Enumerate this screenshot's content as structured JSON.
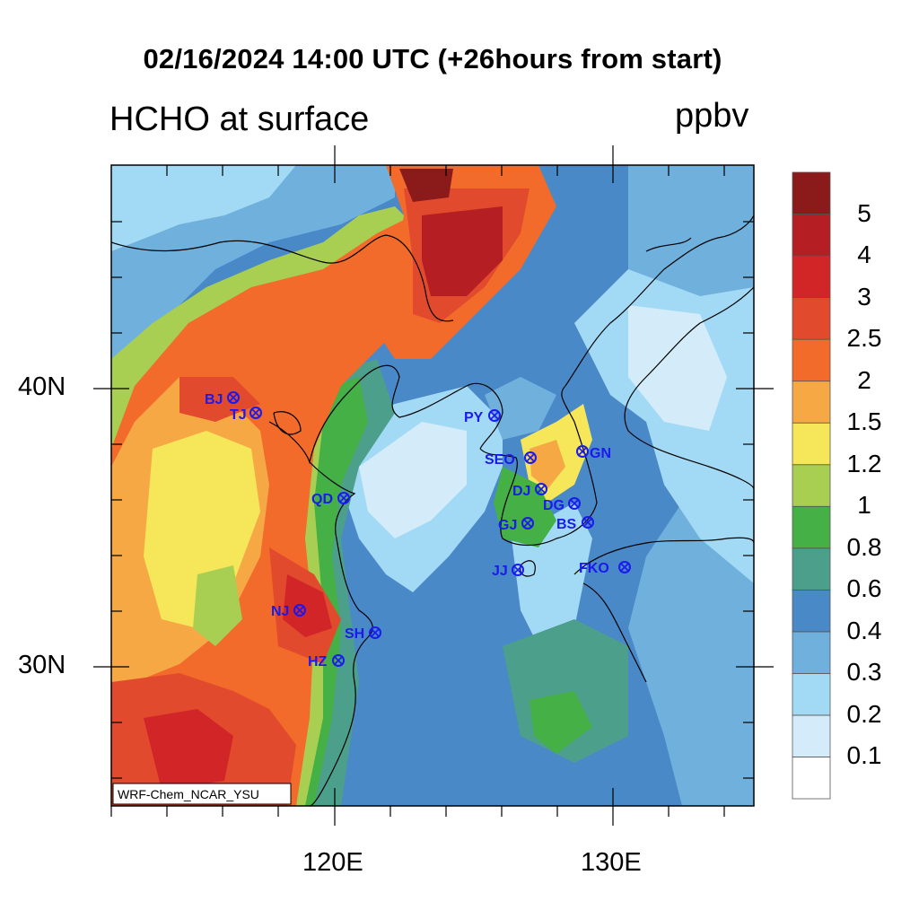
{
  "title": "02/16/2024 14:00 UTC (+26hours from start)",
  "subtitle": "HCHO at surface",
  "units": "ppbv",
  "model_tag": "WRF-Chem_NCAR_YSU",
  "axes": {
    "lat_labels": [
      "40N",
      "30N"
    ],
    "lon_labels": [
      "120E",
      "130E"
    ]
  },
  "colorbar": {
    "levels": [
      "0.1",
      "0.2",
      "0.3",
      "0.4",
      "0.6",
      "0.8",
      "1",
      "1.2",
      "1.5",
      "2",
      "2.5",
      "3",
      "4",
      "5"
    ],
    "colors": [
      "#ffffff",
      "#d4ecf9",
      "#a2daf5",
      "#6fb0dd",
      "#4a89c8",
      "#4c9f8a",
      "#44b045",
      "#a8cf52",
      "#f6e65a",
      "#f6a845",
      "#f26b2a",
      "#e14a2c",
      "#d22528",
      "#b51e22",
      "#8b1a1b"
    ]
  },
  "cities": [
    {
      "label": "BJ"
    },
    {
      "label": "TJ"
    },
    {
      "label": "QD"
    },
    {
      "label": "NJ"
    },
    {
      "label": "SH"
    },
    {
      "label": "HZ"
    },
    {
      "label": "PY"
    },
    {
      "label": "SEO"
    },
    {
      "label": "DJ"
    },
    {
      "label": "DG"
    },
    {
      "label": "GJ"
    },
    {
      "label": "BS"
    },
    {
      "label": "GN"
    },
    {
      "label": "JJ"
    },
    {
      "label": "FKO"
    }
  ]
}
